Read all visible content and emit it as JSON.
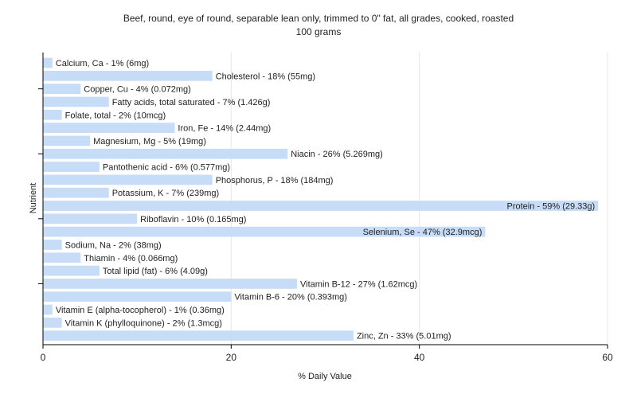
{
  "chart_data": {
    "type": "bar",
    "orientation": "horizontal",
    "title": "Beef, round, eye of round, separable lean only, trimmed to 0\" fat, all grades, cooked, roasted",
    "subtitle": "100 grams",
    "xlabel": "% Daily Value",
    "ylabel": "Nutrient",
    "xlim": [
      0,
      60
    ],
    "xticks": [
      0,
      20,
      40,
      60
    ],
    "grid": true,
    "bar_color": "#c6dcf7",
    "categories": [
      "Calcium, Ca",
      "Cholesterol",
      "Copper, Cu",
      "Fatty acids, total saturated",
      "Folate, total",
      "Iron, Fe",
      "Magnesium, Mg",
      "Niacin",
      "Pantothenic acid",
      "Phosphorus, P",
      "Potassium, K",
      "Protein",
      "Riboflavin",
      "Selenium, Se",
      "Sodium, Na",
      "Thiamin",
      "Total lipid (fat)",
      "Vitamin B-12",
      "Vitamin B-6",
      "Vitamin E (alpha-tocopherol)",
      "Vitamin K (phylloquinone)",
      "Zinc, Zn"
    ],
    "values": [
      1,
      18,
      4,
      7,
      2,
      14,
      5,
      26,
      6,
      18,
      7,
      59,
      10,
      47,
      2,
      4,
      6,
      27,
      20,
      1,
      2,
      33
    ],
    "labels": [
      "Calcium, Ca - 1% (6mg)",
      "Cholesterol - 18% (55mg)",
      "Copper, Cu - 4% (0.072mg)",
      "Fatty acids, total saturated - 7% (1.426g)",
      "Folate, total - 2% (10mcg)",
      "Iron, Fe - 14% (2.44mg)",
      "Magnesium, Mg - 5% (19mg)",
      "Niacin - 26% (5.269mg)",
      "Pantothenic acid - 6% (0.577mg)",
      "Phosphorus, P - 18% (184mg)",
      "Potassium, K - 7% (239mg)",
      "Protein - 59% (29.33g)",
      "Riboflavin - 10% (0.165mg)",
      "Selenium, Se - 47% (32.9mcg)",
      "Sodium, Na - 2% (38mg)",
      "Thiamin - 4% (0.066mg)",
      "Total lipid (fat) - 6% (4.09g)",
      "Vitamin B-12 - 27% (1.62mcg)",
      "Vitamin B-6 - 20% (0.393mg)",
      "Vitamin E (alpha-tocopherol) - 1% (0.36mg)",
      "Vitamin K (phylloquinone) - 2% (1.3mcg)",
      "Zinc, Zn - 33% (5.01mg)"
    ]
  }
}
